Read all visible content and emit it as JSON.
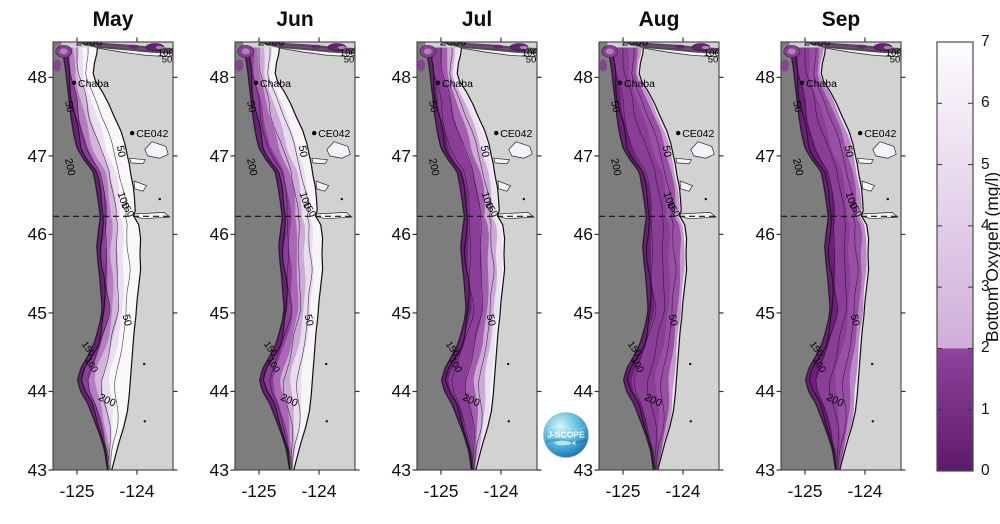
{
  "months": [
    {
      "label": "May",
      "bands": [
        [
          0,
          "#6a2076"
        ],
        [
          0.1,
          "#8a3e97"
        ],
        [
          0.2,
          "#b57cc2"
        ],
        [
          0.32,
          "#d3b4dc"
        ],
        [
          0.46,
          "#eadff0"
        ],
        [
          0.6,
          "#faf7fb"
        ]
      ]
    },
    {
      "label": "Jun",
      "bands": [
        [
          0,
          "#6a2076"
        ],
        [
          0.1,
          "#8a3e97"
        ],
        [
          0.24,
          "#ab66b8"
        ],
        [
          0.4,
          "#cda9d7"
        ],
        [
          0.58,
          "#e8dcee"
        ],
        [
          0.78,
          "#f8f4fa"
        ]
      ]
    },
    {
      "label": "Jul",
      "bands": [
        [
          0,
          "#6a2076"
        ],
        [
          0.14,
          "#8a3e97"
        ],
        [
          0.45,
          "#a55cb1"
        ],
        [
          0.62,
          "#cda9d7"
        ],
        [
          0.82,
          "#ece1f0"
        ],
        [
          0.94,
          "#f6f1f8"
        ]
      ]
    },
    {
      "label": "Aug",
      "bands": [
        [
          0,
          "#6a2076"
        ],
        [
          0.16,
          "#8a3e97"
        ],
        [
          0.6,
          "#9a4fa7"
        ],
        [
          0.86,
          "#c795cf"
        ],
        [
          0.95,
          "#eee4f1"
        ]
      ]
    },
    {
      "label": "Sep",
      "bands": [
        [
          0,
          "#6a2076"
        ],
        [
          0.2,
          "#8a3e97"
        ],
        [
          0.55,
          "#9a4fa7"
        ],
        [
          0.84,
          "#bd86c8"
        ],
        [
          0.95,
          "#eee4f1"
        ]
      ]
    }
  ],
  "map": {
    "y_ticks": [
      48,
      47,
      46,
      45,
      44,
      43
    ],
    "x_ticks": [
      -125,
      -124
    ],
    "dashed_line_lat": 46.23,
    "stations": [
      {
        "name": "Chaba",
        "lat": 47.93,
        "lon": -125.05
      },
      {
        "name": "CE042",
        "lat": 47.29,
        "lon": -124.08
      }
    ],
    "contour_labels": [
      {
        "text": "2000",
        "lat": 48.405,
        "lon": -125.02,
        "rot": 0,
        "size": 12,
        "anchor": "start"
      },
      {
        "text": "100",
        "lat": 48.27,
        "lon": -123.52,
        "rot": 0,
        "size": 9.5
      },
      {
        "text": "50",
        "lat": 48.19,
        "lon": -123.5,
        "rot": 0,
        "size": 9.5
      },
      {
        "text": "50",
        "lat": 47.62,
        "lon": -125.18,
        "rot": 78,
        "size": 10.5
      },
      {
        "text": "200",
        "lat": 46.85,
        "lon": -125.17,
        "rot": 78,
        "size": 10.5
      },
      {
        "text": "50",
        "lat": 47.05,
        "lon": -124.32,
        "rot": 80,
        "size": 10.5
      },
      {
        "text": "100",
        "lat": 46.42,
        "lon": -124.28,
        "rot": 72,
        "size": 10.5
      },
      {
        "text": "150",
        "lat": 46.3,
        "lon": -124.2,
        "rot": 60,
        "size": 9.5
      },
      {
        "text": "50",
        "lat": 44.9,
        "lon": -124.22,
        "rot": 78,
        "size": 10.5
      },
      {
        "text": "150",
        "lat": 44.52,
        "lon": -124.85,
        "rot": 55,
        "size": 9.5
      },
      {
        "text": "100",
        "lat": 44.32,
        "lon": -124.8,
        "rot": 60,
        "size": 9.5
      },
      {
        "text": "200",
        "lat": 43.85,
        "lon": -124.52,
        "rot": 25,
        "size": 10.5
      }
    ],
    "colors": {
      "land": "#d2d2d2",
      "ocean_deep": "#7d7d7d",
      "coastline": "#111111",
      "border": "#3f3f3f",
      "strait_channel": "#8a3e97",
      "strait_shallow": "#f7f4f9",
      "deep_blob": "#6a2076",
      "blob_ring": "#b57cc2"
    }
  },
  "colorbar": {
    "title": "Bottom Oxygen (mg/l)",
    "min": 0,
    "max": 7,
    "ticks": [
      7,
      6,
      5,
      4,
      3,
      2,
      1,
      0
    ],
    "threshold": 2,
    "top_color": "#fdfcfe",
    "light_color_at_threshold": "#cfaed9",
    "dark_color_at_threshold": "#8e439c",
    "bottom_color": "#5e1b69"
  },
  "logo": {
    "text": "J-SCOPE"
  },
  "chart_data": {
    "type": "heatmap",
    "title": "",
    "variable": "Bottom Oxygen (mg/l)",
    "months": [
      "May",
      "Jun",
      "Jul",
      "Aug",
      "Sep"
    ],
    "value_range": [
      0,
      7
    ],
    "hypoxia_threshold": 2,
    "lat_ticks": [
      48,
      47,
      46,
      45,
      44,
      43
    ],
    "lon_ticks": [
      -125,
      -124
    ],
    "isobath_labels_m": [
      50,
      100,
      150,
      200,
      2000
    ],
    "stations": [
      "Chaba",
      "CE042"
    ],
    "monthly_shelf_pattern": [
      "May: inner shelf pale/white (high oxygen >4), dark purple fringe at shelf break",
      "Jun: light purple widens over mid shelf, white band narrows near coast",
      "Jul: medium purple covers outer/mid shelf, lavender band near coast",
      "Aug: dark-medium purple (low oxygen <2) over nearly entire shelf",
      "Sep: dark-medium purple over shelf, slightly lighter inner band"
    ]
  }
}
